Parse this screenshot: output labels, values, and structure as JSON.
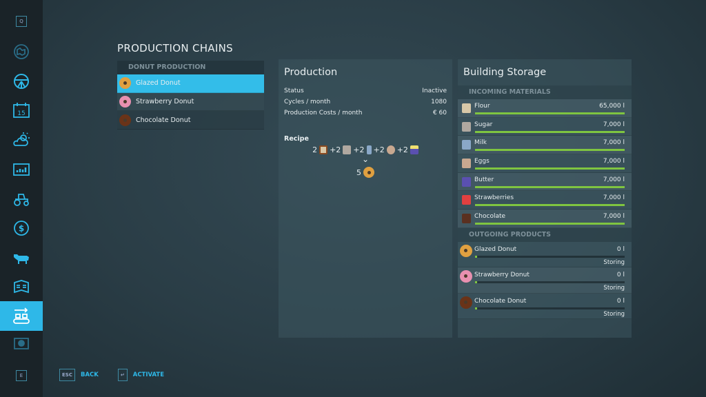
{
  "sidebar": {
    "top_key": "Q",
    "bottom_key": "E",
    "items": [
      {
        "icon": "map-icon"
      },
      {
        "icon": "steering-wheel-icon"
      },
      {
        "icon": "calendar-icon",
        "label": "15"
      },
      {
        "icon": "weather-icon"
      },
      {
        "icon": "statistics-icon"
      },
      {
        "icon": "tractor-icon"
      },
      {
        "icon": "finances-icon",
        "label": "$"
      },
      {
        "icon": "animals-icon"
      },
      {
        "icon": "contracts-icon"
      },
      {
        "icon": "production-icon",
        "active": true
      },
      {
        "icon": "help-icon"
      }
    ]
  },
  "title": "PRODUCTION CHAINS",
  "chain": {
    "header": "DONUT PRODUCTION",
    "items": [
      {
        "label": "Glazed Donut",
        "selected": true
      },
      {
        "label": "Strawberry Donut"
      },
      {
        "label": "Chocolate Donut"
      }
    ]
  },
  "production": {
    "title": "Production",
    "rows": [
      {
        "k": "Status",
        "v": "Inactive"
      },
      {
        "k": "Cycles / month",
        "v": "1080"
      },
      {
        "k": "Production Costs / month",
        "v": "€ 60"
      }
    ],
    "recipe_label": "Recipe",
    "inputs": [
      {
        "n": "2",
        "icon": "flour-icon"
      },
      {
        "n": "+2",
        "icon": "sugar-icon"
      },
      {
        "n": "+2",
        "icon": "milk-icon"
      },
      {
        "n": "+2",
        "icon": "eggs-icon"
      },
      {
        "n": "+2",
        "icon": "butter-icon"
      }
    ],
    "arrow": "⌄",
    "output": {
      "n": "5",
      "icon": "glazed-donut-icon"
    }
  },
  "storage": {
    "title": "Building Storage",
    "incoming_header": "INCOMING MATERIALS",
    "incoming": [
      {
        "name": "Flour",
        "value": "65,000 l",
        "fill": 1.0
      },
      {
        "name": "Sugar",
        "value": "7,000 l",
        "fill": 1.0
      },
      {
        "name": "Milk",
        "value": "7,000 l",
        "fill": 1.0
      },
      {
        "name": "Eggs",
        "value": "7,000 l",
        "fill": 1.0
      },
      {
        "name": "Butter",
        "value": "7,000 l",
        "fill": 1.0
      },
      {
        "name": "Strawberries",
        "value": "7,000 l",
        "fill": 1.0
      },
      {
        "name": "Chocolate",
        "value": "7,000 l",
        "fill": 1.0
      }
    ],
    "outgoing_header": "OUTGOING PRODUCTS",
    "outgoing": [
      {
        "name": "Glazed Donut",
        "value": "0 l",
        "status": "Storing",
        "fill": 0
      },
      {
        "name": "Strawberry Donut",
        "value": "0 l",
        "status": "Storing",
        "fill": 0
      },
      {
        "name": "Chocolate Donut",
        "value": "0 l",
        "status": "Storing",
        "fill": 0
      }
    ]
  },
  "footer": {
    "back_key": "ESC",
    "back": "BACK",
    "activate_key": "↵",
    "activate": "ACTIVATE"
  },
  "colors": {
    "accent": "#33bde9",
    "bar": "#7fc540"
  }
}
